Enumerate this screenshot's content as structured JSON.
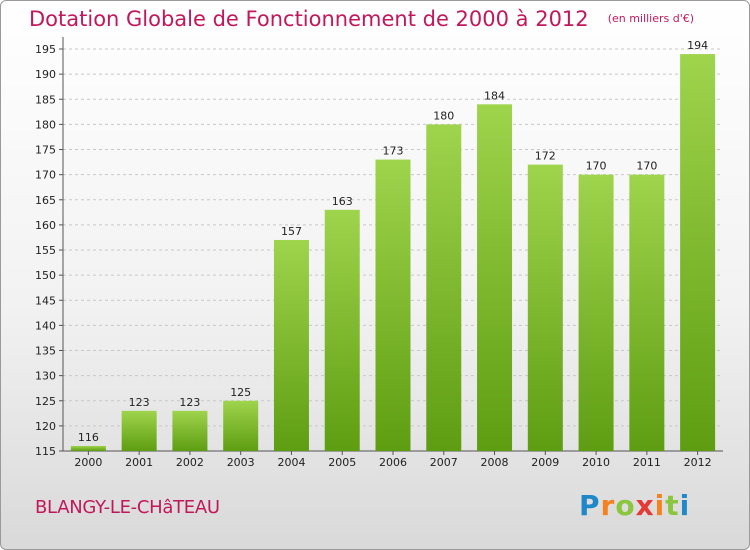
{
  "header": {
    "title": "Dotation Globale de Fonctionnement de 2000 à 2012",
    "subtitle": "(en milliers d'€)"
  },
  "footer": {
    "commune": "BLANGY-LE-CHâTEAU",
    "brand": "Proxiti"
  },
  "colors": {
    "title": "#c2185b",
    "bar_light": "#9fd44d",
    "bar_dark": "#5e9d12",
    "grid": "#c8c8c8"
  },
  "chart_data": {
    "type": "bar",
    "title": "Dotation Globale de Fonctionnement de 2000 à 2012",
    "subtitle": "(en milliers d'€)",
    "categories": [
      "2000",
      "2001",
      "2002",
      "2003",
      "2004",
      "2005",
      "2006",
      "2007",
      "2008",
      "2009",
      "2010",
      "2011",
      "2012"
    ],
    "values": [
      116,
      123,
      123,
      125,
      157,
      163,
      173,
      180,
      184,
      172,
      170,
      170,
      194
    ],
    "ylim": [
      115,
      197
    ],
    "yticks": [
      115,
      120,
      125,
      130,
      135,
      140,
      145,
      150,
      155,
      160,
      165,
      170,
      175,
      180,
      185,
      190,
      195
    ],
    "grid": true,
    "data_labels": true
  }
}
